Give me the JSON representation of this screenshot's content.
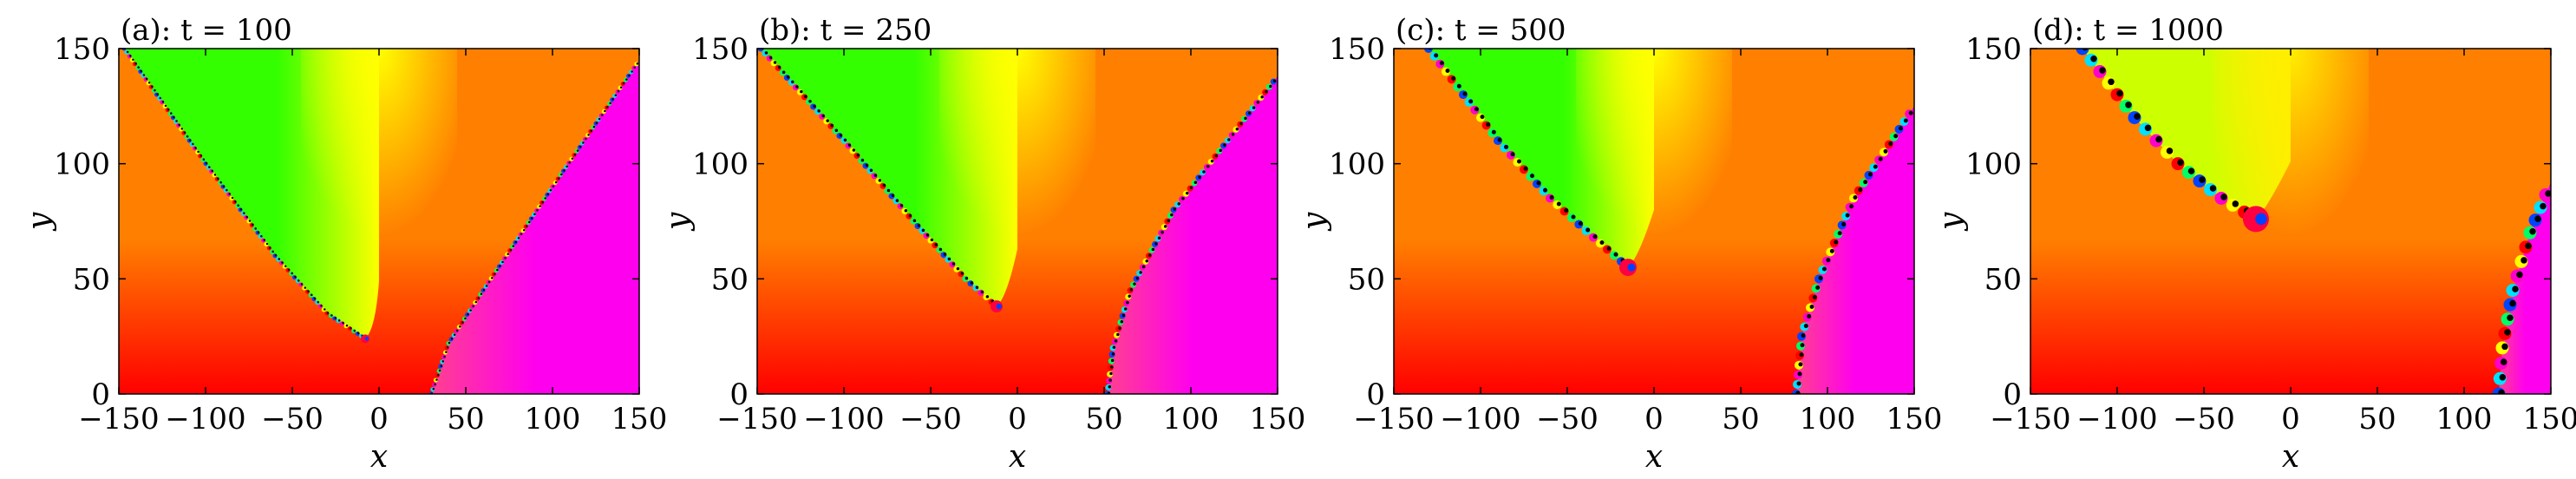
{
  "figure": {
    "panels_note": "",
    "x_label": "x",
    "y_label": "y"
  },
  "chart_data": [
    {
      "type": "heatmap",
      "title": "(a): t = 100",
      "xlabel": "x",
      "ylabel": "y",
      "xlim": [
        -150,
        150
      ],
      "ylim": [
        0,
        150
      ],
      "xticks": [
        -150,
        -100,
        -50,
        0,
        50,
        100,
        150
      ],
      "yticks": [
        0,
        50,
        100,
        150
      ],
      "grid": false,
      "colors": {
        "left_wedge": "#33ff00",
        "right_wedge": "#ff00ee",
        "center": "#ffff00",
        "background": "#ff8000",
        "bottom": "#ff0000"
      },
      "wall_left": {
        "x": [
          -147,
          -100,
          -60,
          -30,
          -8
        ],
        "y": [
          150,
          100,
          60,
          35,
          24
        ]
      },
      "wall_right": {
        "x": [
          30,
          40,
          60,
          100,
          150
        ],
        "y": [
          0,
          22,
          45,
          90,
          145
        ]
      },
      "vortex_core": {
        "x": -8,
        "y": 24
      }
    },
    {
      "type": "heatmap",
      "title": "(b): t = 250",
      "xlabel": "x",
      "ylabel": "y",
      "xlim": [
        -150,
        150
      ],
      "ylim": [
        0,
        150
      ],
      "xticks": [
        -150,
        -100,
        -50,
        0,
        50,
        100,
        150
      ],
      "yticks": [
        0,
        50,
        100,
        150
      ],
      "grid": false,
      "colors": {
        "left_wedge": "#33ff00",
        "right_wedge": "#ff00ee",
        "center": "#ffff00",
        "background": "#ff8000",
        "bottom": "#ff0000"
      },
      "wall_left": {
        "x": [
          -148,
          -100,
          -60,
          -30,
          -12
        ],
        "y": [
          150,
          110,
          75,
          50,
          38
        ]
      },
      "wall_right": {
        "x": [
          52,
          55,
          65,
          90,
          150
        ],
        "y": [
          0,
          20,
          45,
          80,
          138
        ]
      },
      "vortex_core": {
        "x": -12,
        "y": 38
      }
    },
    {
      "type": "heatmap",
      "title": "(c): t = 500",
      "xlabel": "x",
      "ylabel": "y",
      "xlim": [
        -150,
        150
      ],
      "ylim": [
        0,
        150
      ],
      "xticks": [
        -150,
        -100,
        -50,
        0,
        50,
        100,
        150
      ],
      "yticks": [
        0,
        50,
        100,
        150
      ],
      "grid": false,
      "colors": {
        "left_wedge": "#33ff00",
        "right_wedge": "#ff00ee",
        "center": "#ffff00",
        "background": "#ff8000",
        "bottom": "#ff0000"
      },
      "wall_left": {
        "x": [
          -130,
          -90,
          -60,
          -35,
          -15
        ],
        "y": [
          150,
          110,
          85,
          68,
          55
        ]
      },
      "wall_right": {
        "x": [
          82,
          85,
          95,
          115,
          150
        ],
        "y": [
          0,
          25,
          50,
          85,
          125
        ]
      },
      "vortex_core": {
        "x": -15,
        "y": 55
      }
    },
    {
      "type": "heatmap",
      "title": "(d): t = 1000",
      "xlabel": "x",
      "ylabel": "y",
      "xlim": [
        -150,
        150
      ],
      "ylim": [
        0,
        150
      ],
      "xticks": [
        -150,
        -100,
        -50,
        0,
        50,
        100,
        150
      ],
      "yticks": [
        0,
        50,
        100,
        150
      ],
      "grid": false,
      "colors": {
        "left_wedge": "#ccff00",
        "right_wedge": "#ff00ee",
        "center": "#ffee00",
        "background": "#ff8000",
        "bottom": "#ff0000"
      },
      "wall_left": {
        "x": [
          -120,
          -90,
          -65,
          -40,
          -20
        ],
        "y": [
          150,
          120,
          100,
          85,
          76
        ]
      },
      "wall_right": {
        "x": [
          120,
          122,
          128,
          138,
          150
        ],
        "y": [
          0,
          20,
          45,
          70,
          92
        ]
      },
      "vortex_core": {
        "x": -20,
        "y": 76
      }
    }
  ]
}
